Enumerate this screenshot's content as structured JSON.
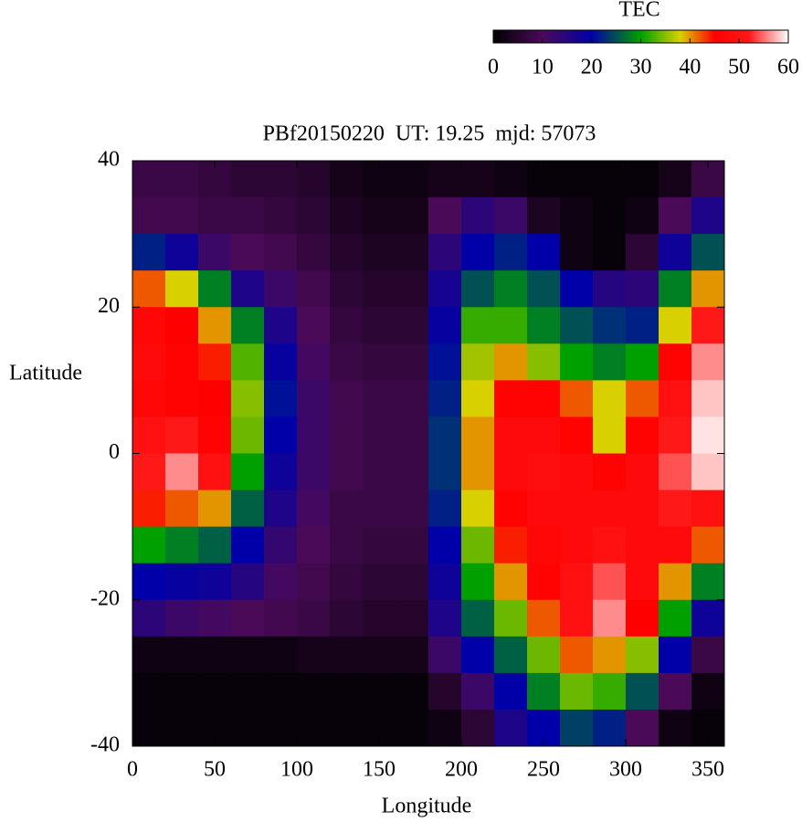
{
  "chart_data": {
    "type": "heatmap",
    "title": "PBf20150220  UT: 19.25  mjd: 57073",
    "x_label": "Longitude",
    "y_label": "Latitude",
    "colorbar_label": "TEC",
    "x": [
      10,
      30,
      50,
      70,
      90,
      110,
      130,
      150,
      170,
      190,
      210,
      230,
      250,
      270,
      290,
      310,
      330,
      350
    ],
    "y": [
      37.5,
      32.5,
      27.5,
      22.5,
      17.5,
      12.5,
      7.5,
      2.5,
      -2.5,
      -7.5,
      -12.5,
      -17.5,
      -22.5,
      -27.5,
      -32.5,
      -37.5
    ],
    "z": [
      [
        8,
        8,
        7,
        6,
        6,
        5,
        3,
        2,
        2,
        3,
        3,
        2,
        1,
        1,
        1,
        1,
        3,
        8
      ],
      [
        9,
        9,
        8,
        8,
        7,
        6,
        4,
        3,
        3,
        10,
        14,
        12,
        4,
        2,
        1,
        2,
        10,
        16
      ],
      [
        22,
        18,
        12,
        10,
        9,
        7,
        5,
        4,
        4,
        14,
        20,
        22,
        20,
        2,
        1,
        6,
        18,
        25
      ],
      [
        42,
        38,
        28,
        16,
        12,
        9,
        6,
        5,
        5,
        17,
        25,
        28,
        25,
        20,
        15,
        14,
        28,
        40
      ],
      [
        47,
        45,
        40,
        28,
        16,
        10,
        7,
        6,
        6,
        19,
        32,
        32,
        28,
        25,
        23,
        22,
        38,
        52
      ],
      [
        48,
        46,
        44,
        33,
        19,
        11,
        8,
        7,
        7,
        21,
        36,
        40,
        35,
        30,
        28,
        30,
        46,
        56
      ],
      [
        47,
        46,
        45,
        35,
        21,
        12,
        9,
        8,
        8,
        22,
        38,
        46,
        46,
        42,
        38,
        42,
        50,
        58
      ],
      [
        50,
        52,
        46,
        34,
        20,
        12,
        9,
        8,
        8,
        23,
        40,
        48,
        48,
        46,
        38,
        46,
        52,
        59
      ],
      [
        52,
        56,
        50,
        30,
        18,
        12,
        9,
        8,
        8,
        23,
        40,
        48,
        49,
        48,
        46,
        48,
        54,
        58
      ],
      [
        44,
        42,
        40,
        26,
        16,
        11,
        8,
        8,
        8,
        22,
        38,
        46,
        48,
        48,
        48,
        48,
        52,
        50
      ],
      [
        30,
        28,
        26,
        20,
        13,
        10,
        8,
        7,
        7,
        20,
        34,
        44,
        47,
        48,
        50,
        48,
        48,
        42
      ],
      [
        20,
        19,
        18,
        15,
        11,
        9,
        7,
        6,
        6,
        18,
        30,
        40,
        46,
        50,
        54,
        48,
        40,
        28
      ],
      [
        14,
        12,
        11,
        10,
        9,
        8,
        6,
        5,
        5,
        16,
        26,
        34,
        42,
        50,
        56,
        45,
        30,
        18
      ],
      [
        2,
        2,
        2,
        2,
        2,
        3,
        3,
        3,
        3,
        12,
        20,
        26,
        34,
        42,
        40,
        35,
        20,
        8
      ],
      [
        1,
        1,
        1,
        1,
        1,
        1,
        1,
        1,
        1,
        5,
        12,
        20,
        28,
        34,
        32,
        25,
        10,
        2
      ],
      [
        1,
        1,
        1,
        1,
        1,
        1,
        1,
        1,
        1,
        2,
        6,
        16,
        20,
        24,
        22,
        10,
        2,
        1
      ]
    ],
    "xlim": [
      0,
      360
    ],
    "xticks": [
      0,
      50,
      100,
      150,
      200,
      250,
      300,
      350
    ],
    "ylim": [
      -40,
      40
    ],
    "yticks": [
      -40,
      -20,
      0,
      20,
      40
    ],
    "zlim": [
      0,
      60
    ],
    "zticks": [
      0,
      10,
      20,
      30,
      40,
      50,
      60
    ],
    "colormap": [
      [
        0,
        "#000000"
      ],
      [
        10,
        "#4a0a58"
      ],
      [
        20,
        "#0000a8"
      ],
      [
        30,
        "#00a000"
      ],
      [
        38,
        "#d8d000"
      ],
      [
        45,
        "#ff0000"
      ],
      [
        52,
        "#ff1818"
      ],
      [
        60,
        "#ffffff"
      ]
    ]
  }
}
